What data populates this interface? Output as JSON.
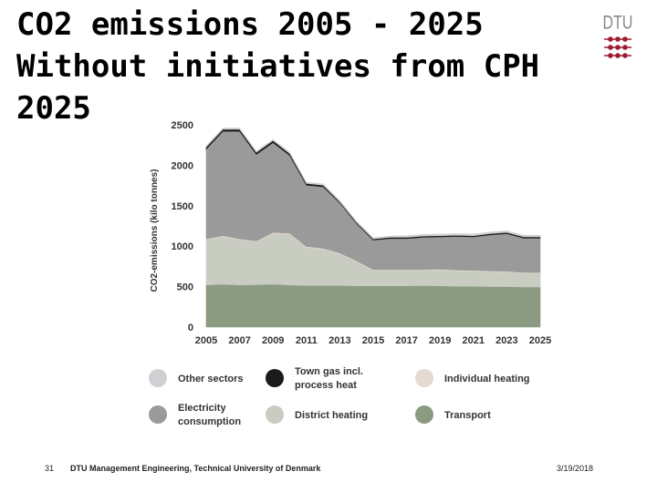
{
  "slide": {
    "title_lines": [
      "CO2 emissions 2005 -  2025",
      "Without initiatives from CPH",
      "2025"
    ],
    "logo_text": "DTU",
    "footer_page": "31",
    "footer_org": "DTU Management Engineering, Technical University of Denmark",
    "footer_date": "3/19/2018"
  },
  "chart_data": {
    "type": "area",
    "stacked": true,
    "x": [
      2005,
      2006,
      2007,
      2008,
      2009,
      2010,
      2011,
      2012,
      2013,
      2014,
      2015,
      2016,
      2017,
      2018,
      2019,
      2020,
      2021,
      2022,
      2023,
      2024,
      2025
    ],
    "ylabel": "CO2-emissions (kilo tonnes)",
    "ylim": [
      0,
      2500
    ],
    "yticks": [
      "0",
      "500",
      "1000",
      "1500",
      "2000",
      "2500"
    ],
    "xticks": [
      "2005",
      "2007",
      "2009",
      "2011",
      "2013",
      "2015",
      "2017",
      "2019",
      "2021",
      "2023",
      "2025"
    ],
    "grid": false,
    "legend_position": "bottom",
    "series": [
      {
        "name": "Transport",
        "color": "#8b9b82",
        "values": [
          520,
          530,
          520,
          525,
          530,
          520,
          515,
          515,
          515,
          510,
          510,
          510,
          510,
          515,
          510,
          505,
          505,
          500,
          500,
          495,
          495
        ]
      },
      {
        "name": "District heating",
        "color": "#c8ccc1",
        "values": [
          560,
          590,
          560,
          530,
          630,
          630,
          470,
          450,
          390,
          300,
          190,
          190,
          190,
          185,
          195,
          190,
          185,
          185,
          180,
          170,
          170
        ]
      },
      {
        "name": "Individual heating",
        "color": "#e6d9cf",
        "values": [
          10,
          10,
          10,
          10,
          10,
          10,
          10,
          10,
          10,
          10,
          10,
          10,
          10,
          10,
          10,
          10,
          10,
          10,
          10,
          10,
          10
        ]
      },
      {
        "name": "Electricity consumption",
        "color": "#9a9a9a",
        "values": [
          1110,
          1290,
          1330,
          1070,
          1110,
          960,
          760,
          760,
          620,
          460,
          365,
          385,
          385,
          400,
          400,
          415,
          415,
          445,
          465,
          425,
          425
        ]
      },
      {
        "name": "Town gas incl. process heat",
        "color": "#1a1a1a",
        "values": [
          25,
          25,
          25,
          25,
          25,
          25,
          20,
          20,
          15,
          15,
          15,
          15,
          15,
          15,
          15,
          15,
          15,
          15,
          15,
          15,
          15
        ]
      },
      {
        "name": "Other sectors",
        "color": "#cfd0d4",
        "values": [
          15,
          15,
          15,
          15,
          15,
          15,
          15,
          15,
          15,
          15,
          15,
          15,
          20,
          20,
          20,
          20,
          20,
          20,
          20,
          20,
          20
        ]
      }
    ],
    "legend_order": [
      {
        "name": "Other sectors",
        "color": "#cfd0d4"
      },
      {
        "name": "Town gas incl.\nprocess heat",
        "color": "#1a1a1a"
      },
      {
        "name": "Individual heating",
        "color": "#e6d9cf"
      },
      {
        "name": "Electricity\nconsumption",
        "color": "#9a9a9a"
      },
      {
        "name": "District heating",
        "color": "#c8ccc1"
      },
      {
        "name": "Transport",
        "color": "#8b9b82"
      }
    ]
  }
}
